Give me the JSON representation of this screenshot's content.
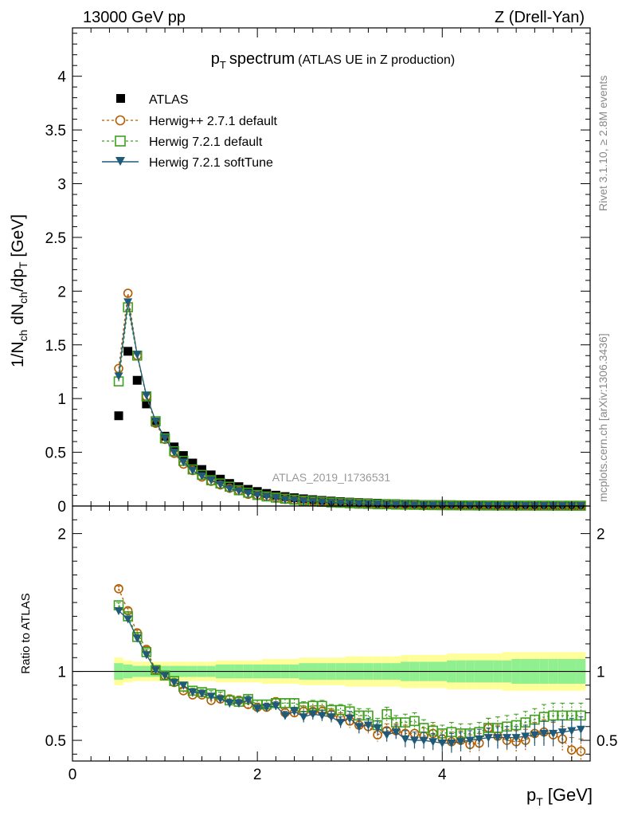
{
  "header": {
    "left": "13000 GeV pp",
    "right": "Z (Drell-Yan)"
  },
  "side": {
    "rivet": "Rivet 3.1.10, ≥ 2.8M events",
    "mcplots": "mcplots.cern.ch [arXiv:1306.3436]"
  },
  "chart_data": {
    "type": "scatter",
    "title_main": "p",
    "title_sub": "T",
    "title_word": "spectrum",
    "title_note": "(ATLAS UE in Z production)",
    "analysis_id": "ATLAS_2019_I1736531",
    "xlabel_main": "p",
    "xlabel_sub": "T",
    "xlabel_unit": "[GeV]",
    "ylabel": "1/N_ch dN_ch/dp_T [GeV]",
    "ylabel_parts": {
      "a": "1/N",
      "b": "ch",
      "c": " dN",
      "d": "ch",
      "e": "/dp",
      "f": "T",
      "g": " [GeV]"
    },
    "ratio_ylabel": "Ratio to ATLAS",
    "xlim": [
      0,
      5.6
    ],
    "ylim": [
      0,
      4.45
    ],
    "ratio_ylim": [
      0.35,
      2.2
    ],
    "x_ticks": [
      "0",
      "2",
      "4"
    ],
    "y_ticks": [
      "0",
      "0.5",
      "1",
      "1.5",
      "2",
      "2.5",
      "3",
      "3.5",
      "4"
    ],
    "ratio_ticks": [
      "0.5",
      "1",
      "2"
    ],
    "x": [
      0.5,
      0.6,
      0.7,
      0.8,
      0.9,
      1.0,
      1.1,
      1.2,
      1.3,
      1.4,
      1.5,
      1.6,
      1.7,
      1.8,
      1.9,
      2.0,
      2.1,
      2.2,
      2.3,
      2.4,
      2.5,
      2.6,
      2.7,
      2.8,
      2.9,
      3.0,
      3.1,
      3.2,
      3.3,
      3.4,
      3.5,
      3.6,
      3.7,
      3.8,
      3.9,
      4.0,
      4.1,
      4.2,
      4.3,
      4.4,
      4.5,
      4.6,
      4.7,
      4.8,
      4.9,
      5.0,
      5.1,
      5.2,
      5.3,
      5.4,
      5.5
    ],
    "series": [
      {
        "name": "ATLAS",
        "color": "#000000",
        "marker": "square-filled",
        "values": [
          0.84,
          1.44,
          1.17,
          0.95,
          0.78,
          0.65,
          0.55,
          0.47,
          0.4,
          0.34,
          0.29,
          0.25,
          0.21,
          0.18,
          0.155,
          0.135,
          0.117,
          0.101,
          0.088,
          0.077,
          0.067,
          0.059,
          0.052,
          0.046,
          0.041,
          0.036,
          0.032,
          0.029,
          0.026,
          0.023,
          0.021,
          0.019,
          0.017,
          0.015,
          0.014,
          0.013,
          0.012,
          0.011,
          0.01,
          0.009,
          0.008,
          0.0075,
          0.007,
          0.0065,
          0.006,
          0.0055,
          0.005,
          0.0047,
          0.0044,
          0.0041,
          0.0038
        ],
        "band_stat": [
          0.06,
          0.05,
          0.04,
          0.04,
          0.04,
          0.04,
          0.04,
          0.04,
          0.04,
          0.04,
          0.04,
          0.05,
          0.05,
          0.05,
          0.05,
          0.05,
          0.05,
          0.05,
          0.05,
          0.05,
          0.06,
          0.06,
          0.06,
          0.06,
          0.06,
          0.06,
          0.06,
          0.06,
          0.06,
          0.06,
          0.06,
          0.07,
          0.07,
          0.07,
          0.07,
          0.07,
          0.08,
          0.08,
          0.08,
          0.08,
          0.08,
          0.08,
          0.08,
          0.09,
          0.09,
          0.09,
          0.09,
          0.09,
          0.09,
          0.09,
          0.09
        ],
        "band_tot": [
          0.1,
          0.08,
          0.07,
          0.07,
          0.07,
          0.07,
          0.07,
          0.07,
          0.07,
          0.07,
          0.07,
          0.08,
          0.08,
          0.08,
          0.08,
          0.08,
          0.09,
          0.09,
          0.09,
          0.09,
          0.1,
          0.1,
          0.1,
          0.1,
          0.1,
          0.11,
          0.11,
          0.11,
          0.11,
          0.11,
          0.11,
          0.12,
          0.12,
          0.12,
          0.12,
          0.12,
          0.13,
          0.13,
          0.13,
          0.13,
          0.13,
          0.13,
          0.14,
          0.14,
          0.14,
          0.14,
          0.14,
          0.14,
          0.14,
          0.14,
          0.14
        ]
      },
      {
        "name": "Herwig++ 2.7.1 default",
        "color": "#b35c00",
        "marker": "circle-open",
        "line": "dashed",
        "values": [
          1.28,
          1.98,
          1.4,
          1.02,
          0.77,
          0.62,
          0.49,
          0.39,
          0.33,
          0.27,
          0.23,
          0.196,
          0.166,
          0.142,
          0.109,
          0.1,
          0.087,
          0.079,
          0.062,
          0.054,
          0.047,
          0.042,
          0.037,
          0.032,
          0.027,
          0.023,
          0.019,
          0.017,
          0.014,
          0.013,
          0.012,
          0.01,
          0.009,
          0.008,
          0.0077,
          0.0066,
          0.0059,
          0.0055,
          0.0047,
          0.0043,
          0.0047,
          0.004,
          0.0035,
          0.0032,
          0.003,
          0.003,
          0.0028,
          0.0025,
          0.0022,
          0.0018,
          0.0016
        ],
        "ratio": [
          1.6,
          1.44,
          1.28,
          1.16,
          1.01,
          0.97,
          0.92,
          0.86,
          0.83,
          0.83,
          0.79,
          0.8,
          0.8,
          0.79,
          0.76,
          0.74,
          0.74,
          0.78,
          0.7,
          0.7,
          0.71,
          0.71,
          0.71,
          0.69,
          0.66,
          0.64,
          0.61,
          0.6,
          0.54,
          0.57,
          0.57,
          0.55,
          0.55,
          0.53,
          0.55,
          0.51,
          0.49,
          0.5,
          0.47,
          0.48,
          0.59,
          0.53,
          0.5,
          0.49,
          0.5,
          0.55,
          0.56,
          0.54,
          0.51,
          0.43,
          0.42
        ],
        "ratio_err": [
          0.02,
          0.02,
          0.02,
          0.02,
          0.02,
          0.02,
          0.02,
          0.02,
          0.02,
          0.02,
          0.02,
          0.02,
          0.03,
          0.03,
          0.03,
          0.03,
          0.03,
          0.03,
          0.03,
          0.03,
          0.04,
          0.04,
          0.04,
          0.04,
          0.04,
          0.05,
          0.05,
          0.05,
          0.05,
          0.05,
          0.05,
          0.06,
          0.06,
          0.06,
          0.06,
          0.06,
          0.07,
          0.07,
          0.07,
          0.07,
          0.07,
          0.08,
          0.08,
          0.08,
          0.08,
          0.08,
          0.09,
          0.09,
          0.09,
          0.09,
          0.09
        ]
      },
      {
        "name": "Herwig 7.2.1 default",
        "color": "#3f9f1f",
        "marker": "square-open",
        "line": "dashed",
        "values": [
          1.16,
          1.85,
          1.4,
          1.02,
          0.79,
          0.63,
          0.51,
          0.42,
          0.34,
          0.29,
          0.24,
          0.21,
          0.18,
          0.147,
          0.124,
          0.103,
          0.089,
          0.078,
          0.068,
          0.059,
          0.05,
          0.044,
          0.039,
          0.033,
          0.03,
          0.026,
          0.022,
          0.02,
          0.016,
          0.016,
          0.013,
          0.012,
          0.011,
          0.0089,
          0.008,
          0.0072,
          0.0067,
          0.0061,
          0.0055,
          0.005,
          0.0047,
          0.0044,
          0.0042,
          0.004,
          0.0038,
          0.0036,
          0.0034,
          0.0032,
          0.003,
          0.0028,
          0.0026
        ],
        "ratio": [
          1.48,
          1.4,
          1.25,
          1.14,
          1.01,
          0.97,
          0.93,
          0.89,
          0.86,
          0.85,
          0.84,
          0.83,
          0.79,
          0.78,
          0.8,
          0.76,
          0.76,
          0.77,
          0.77,
          0.77,
          0.74,
          0.75,
          0.75,
          0.72,
          0.72,
          0.71,
          0.68,
          0.68,
          0.61,
          0.69,
          0.63,
          0.63,
          0.64,
          0.59,
          0.57,
          0.55,
          0.56,
          0.55,
          0.55,
          0.56,
          0.59,
          0.59,
          0.6,
          0.61,
          0.63,
          0.65,
          0.67,
          0.68,
          0.68,
          0.68,
          0.68
        ],
        "ratio_err": [
          0.02,
          0.02,
          0.02,
          0.02,
          0.02,
          0.02,
          0.02,
          0.02,
          0.02,
          0.02,
          0.02,
          0.02,
          0.03,
          0.03,
          0.03,
          0.03,
          0.03,
          0.03,
          0.03,
          0.03,
          0.04,
          0.04,
          0.04,
          0.04,
          0.04,
          0.05,
          0.05,
          0.05,
          0.05,
          0.05,
          0.05,
          0.06,
          0.06,
          0.06,
          0.06,
          0.06,
          0.07,
          0.07,
          0.07,
          0.07,
          0.07,
          0.08,
          0.08,
          0.08,
          0.08,
          0.08,
          0.09,
          0.09,
          0.09,
          0.09,
          0.09
        ]
      },
      {
        "name": "Herwig 7.2.1 softTune",
        "color": "#1f5a78",
        "marker": "triangle-down-filled",
        "line": "solid",
        "values": [
          1.21,
          1.9,
          1.41,
          1.03,
          0.79,
          0.63,
          0.5,
          0.41,
          0.33,
          0.28,
          0.24,
          0.2,
          0.16,
          0.14,
          0.12,
          0.1,
          0.087,
          0.076,
          0.06,
          0.055,
          0.045,
          0.041,
          0.036,
          0.031,
          0.026,
          0.024,
          0.019,
          0.018,
          0.016,
          0.013,
          0.012,
          0.01,
          0.0085,
          0.0075,
          0.007,
          0.0063,
          0.0058,
          0.0054,
          0.005,
          0.0046,
          0.0042,
          0.0039,
          0.0036,
          0.0034,
          0.0032,
          0.003,
          0.0028,
          0.0026,
          0.0024,
          0.0022,
          0.002
        ],
        "ratio": [
          1.44,
          1.38,
          1.24,
          1.12,
          1.01,
          0.97,
          0.92,
          0.9,
          0.85,
          0.84,
          0.82,
          0.8,
          0.77,
          0.77,
          0.79,
          0.73,
          0.74,
          0.75,
          0.68,
          0.71,
          0.67,
          0.69,
          0.68,
          0.67,
          0.63,
          0.66,
          0.6,
          0.61,
          0.59,
          0.54,
          0.56,
          0.51,
          0.5,
          0.5,
          0.49,
          0.48,
          0.48,
          0.49,
          0.5,
          0.51,
          0.52,
          0.52,
          0.52,
          0.52,
          0.53,
          0.54,
          0.55,
          0.55,
          0.56,
          0.57,
          0.58
        ],
        "ratio_err": [
          0.02,
          0.02,
          0.02,
          0.02,
          0.02,
          0.02,
          0.02,
          0.02,
          0.02,
          0.02,
          0.02,
          0.02,
          0.03,
          0.03,
          0.03,
          0.03,
          0.03,
          0.03,
          0.03,
          0.03,
          0.04,
          0.04,
          0.04,
          0.04,
          0.04,
          0.05,
          0.05,
          0.05,
          0.05,
          0.05,
          0.05,
          0.06,
          0.06,
          0.06,
          0.06,
          0.06,
          0.07,
          0.07,
          0.07,
          0.07,
          0.07,
          0.08,
          0.08,
          0.08,
          0.08,
          0.08,
          0.09,
          0.09,
          0.09,
          0.09,
          0.09
        ]
      }
    ]
  }
}
